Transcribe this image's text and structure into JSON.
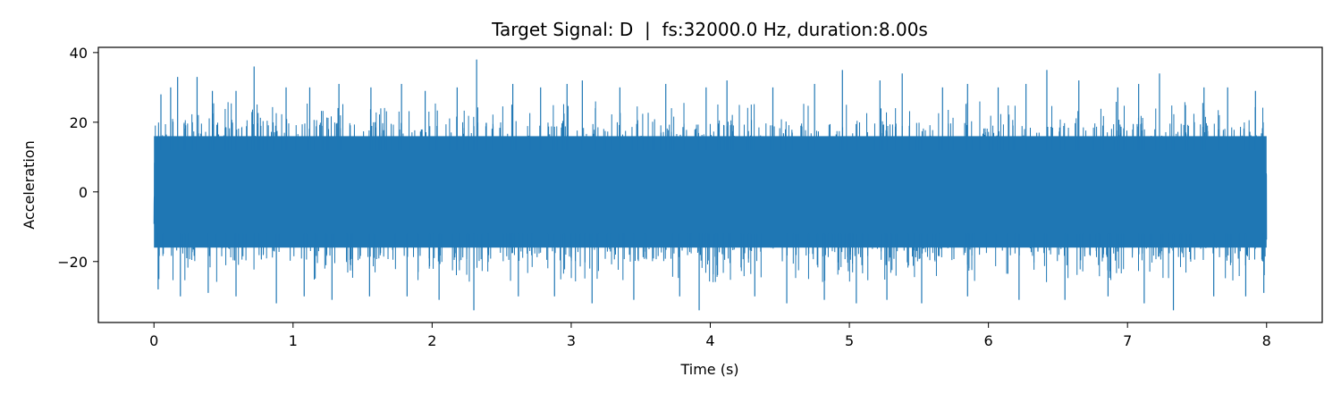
{
  "chart_data": {
    "type": "line",
    "title": "Target Signal: D  |  fs:32000.0 Hz, duration:8.00s",
    "xlabel": "Time (s)",
    "ylabel": "Acceleration",
    "xlim": [
      -0.4,
      8.4
    ],
    "ylim": [
      -37.5,
      41.5
    ],
    "x_ticks": [
      0,
      1,
      2,
      3,
      4,
      5,
      6,
      7,
      8
    ],
    "y_ticks": [
      -20,
      0,
      20,
      40
    ],
    "grid": false,
    "legend": "none",
    "line_color": "#1f77b4",
    "series": [
      {
        "sampling_rate_hz": 32000.0,
        "duration_s": 8.0,
        "x_start": 0.0,
        "x_end": 8.0,
        "typical_range": [
          -20,
          20
        ],
        "peaks": [
          [
            0.05,
            28
          ],
          [
            0.12,
            30
          ],
          [
            0.17,
            33
          ],
          [
            0.31,
            33
          ],
          [
            0.42,
            29
          ],
          [
            0.59,
            29
          ],
          [
            0.72,
            36
          ],
          [
            0.95,
            30
          ],
          [
            1.12,
            30
          ],
          [
            1.33,
            31
          ],
          [
            1.56,
            30
          ],
          [
            1.78,
            31
          ],
          [
            1.95,
            29
          ],
          [
            2.18,
            30
          ],
          [
            2.32,
            38
          ],
          [
            2.58,
            31
          ],
          [
            2.78,
            30
          ],
          [
            2.97,
            31
          ],
          [
            3.08,
            32
          ],
          [
            3.35,
            30
          ],
          [
            3.68,
            31
          ],
          [
            3.97,
            30
          ],
          [
            4.12,
            32
          ],
          [
            4.45,
            30
          ],
          [
            4.75,
            31
          ],
          [
            4.95,
            35
          ],
          [
            5.22,
            32
          ],
          [
            5.38,
            34
          ],
          [
            5.67,
            30
          ],
          [
            5.85,
            31
          ],
          [
            6.07,
            30
          ],
          [
            6.27,
            31
          ],
          [
            6.42,
            35
          ],
          [
            6.65,
            32
          ],
          [
            6.93,
            30
          ],
          [
            7.08,
            31
          ],
          [
            7.23,
            34
          ],
          [
            7.55,
            30
          ],
          [
            7.72,
            30
          ],
          [
            7.92,
            29
          ]
        ],
        "troughs": [
          [
            0.03,
            -28
          ],
          [
            0.19,
            -30
          ],
          [
            0.39,
            -29
          ],
          [
            0.59,
            -30
          ],
          [
            0.88,
            -32
          ],
          [
            1.08,
            -30
          ],
          [
            1.28,
            -31
          ],
          [
            1.55,
            -30
          ],
          [
            1.82,
            -30
          ],
          [
            2.05,
            -31
          ],
          [
            2.3,
            -34
          ],
          [
            2.62,
            -30
          ],
          [
            2.88,
            -30
          ],
          [
            3.15,
            -32
          ],
          [
            3.45,
            -31
          ],
          [
            3.78,
            -30
          ],
          [
            3.92,
            -34
          ],
          [
            4.32,
            -30
          ],
          [
            4.55,
            -32
          ],
          [
            4.82,
            -31
          ],
          [
            5.05,
            -32
          ],
          [
            5.27,
            -31
          ],
          [
            5.52,
            -32
          ],
          [
            5.85,
            -30
          ],
          [
            6.22,
            -31
          ],
          [
            6.55,
            -31
          ],
          [
            6.86,
            -30
          ],
          [
            7.12,
            -32
          ],
          [
            7.33,
            -34
          ],
          [
            7.62,
            -30
          ],
          [
            7.85,
            -30
          ],
          [
            7.98,
            -29
          ]
        ]
      }
    ]
  }
}
